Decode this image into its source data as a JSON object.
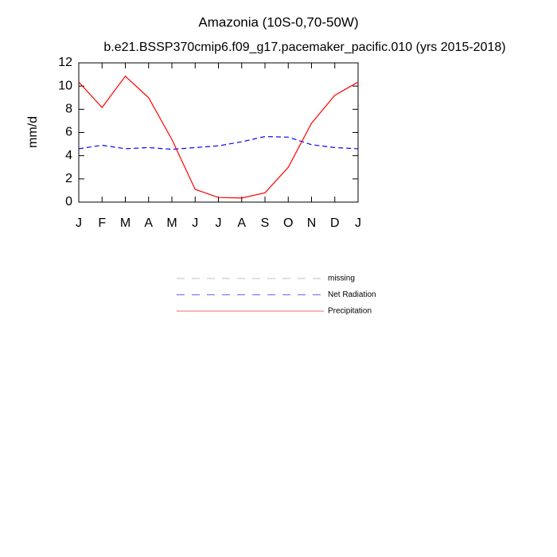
{
  "chart_data": {
    "type": "line",
    "title": "Amazonia (10S-0,70-50W)",
    "subtitle": "b.e21.BSSP370cmip6.f09_g17.pacemaker_pacific.010 (yrs 2015-2018)",
    "y_label": "mm/d",
    "categories": [
      "J",
      "F",
      "M",
      "A",
      "M",
      "J",
      "J",
      "A",
      "S",
      "O",
      "N",
      "D",
      "J"
    ],
    "series": [
      {
        "name": "missing",
        "color": "#999999",
        "dash": true,
        "values": [
          null,
          null,
          null,
          null,
          null,
          null,
          null,
          null,
          null,
          null,
          null,
          null,
          null
        ]
      },
      {
        "name": "Net Radiation",
        "color": "#0000ff",
        "dash": true,
        "values": [
          4.6,
          4.9,
          4.6,
          4.7,
          4.55,
          4.7,
          4.85,
          5.2,
          5.65,
          5.6,
          4.95,
          4.7,
          4.6
        ]
      },
      {
        "name": "Precipitation",
        "color": "#ff0000",
        "dash": false,
        "values": [
          10.35,
          8.15,
          10.85,
          9.0,
          5.4,
          1.1,
          0.4,
          0.35,
          0.8,
          3.0,
          6.8,
          9.2,
          10.35
        ]
      }
    ],
    "ylim": [
      0,
      12
    ],
    "yticks": [
      0,
      2,
      4,
      6,
      8,
      10,
      12
    ]
  }
}
